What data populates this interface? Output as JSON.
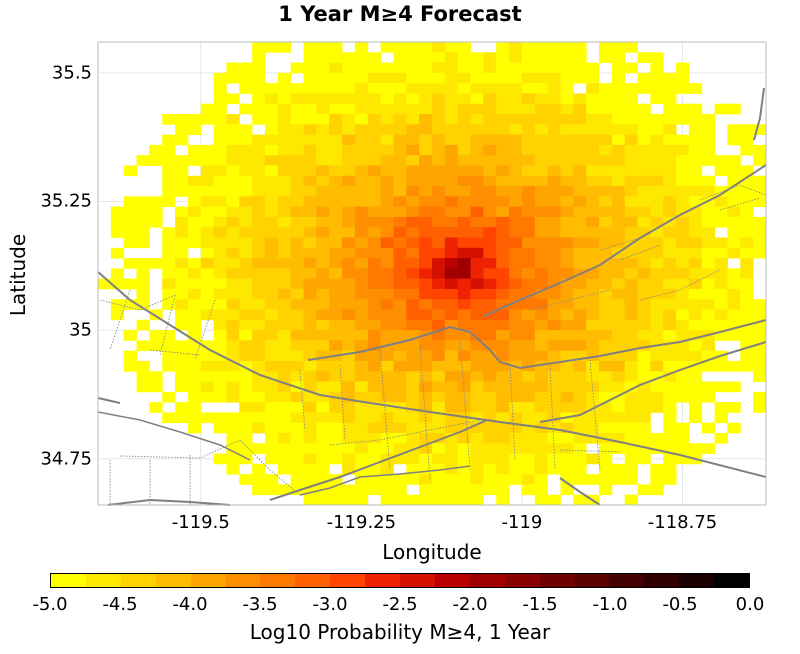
{
  "title": "1 Year M≥4 Forecast",
  "map": {
    "xlabel": "Longitude",
    "ylabel": "Latitude",
    "x_ticks": [
      {
        "value": -119.5,
        "label": "-119.5"
      },
      {
        "value": -119.25,
        "label": "-119.25"
      },
      {
        "value": -119.0,
        "label": "-119"
      },
      {
        "value": -118.75,
        "label": "-118.75"
      }
    ],
    "y_ticks": [
      {
        "value": 35.5,
        "label": "35.5"
      },
      {
        "value": 35.25,
        "label": "35.25"
      },
      {
        "value": 35.0,
        "label": "35"
      },
      {
        "value": 34.75,
        "label": "34.75"
      }
    ],
    "xlim": [
      -119.66,
      -118.62
    ],
    "ylim": [
      34.66,
      35.56
    ],
    "grid_cell_deg": 0.02,
    "peak_center": {
      "lon": -119.1,
      "lat": 35.12,
      "log_prob": -0.6
    },
    "forecast_radius_deg": 0.52,
    "edge_log_prob": -5.0
  },
  "colorbar": {
    "label": "Log10 Probability M≥4, 1 Year",
    "ticks": [
      "-5.0",
      "-4.5",
      "-4.0",
      "-3.5",
      "-3.0",
      "-2.5",
      "-2.0",
      "-1.5",
      "-1.0",
      "-0.5",
      "0.0"
    ],
    "min": -5.0,
    "max": 0.0,
    "colors": [
      "#ffff00",
      "#ffe800",
      "#ffd200",
      "#ffbc00",
      "#ffa500",
      "#ff8f00",
      "#ff7800",
      "#ff6000",
      "#ff4500",
      "#ee2200",
      "#d41000",
      "#bb0000",
      "#a00000",
      "#880000",
      "#700000",
      "#5a0000",
      "#440000",
      "#2e0000",
      "#1a0000",
      "#000000"
    ]
  },
  "colors": {
    "fault_line": "#808080",
    "minor_fault": "#8a8a8a",
    "frame": "#bbbbbb",
    "grid": "#e6e6e6"
  }
}
